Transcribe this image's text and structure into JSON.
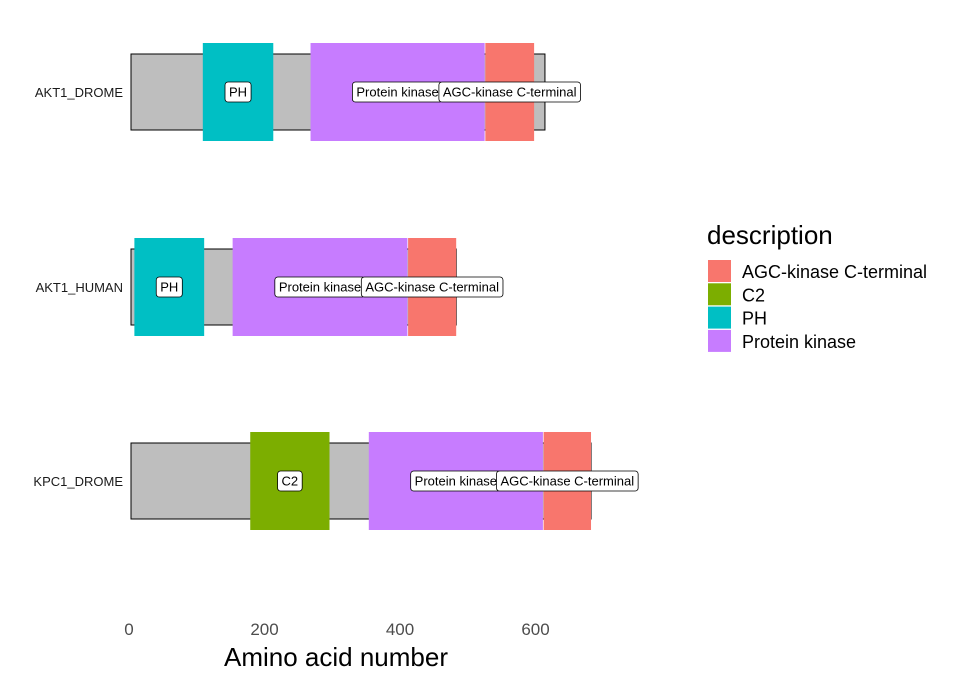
{
  "chart_data": {
    "type": "domain-architecture",
    "xlabel": "Amino acid number",
    "x_ticks": [
      0,
      200,
      400,
      600
    ],
    "xlim": [
      0,
      690
    ],
    "grid": false,
    "legend": {
      "title": "description",
      "placement": "right",
      "entries": [
        {
          "label": "AGC-kinase C-terminal",
          "color": "#F8766D"
        },
        {
          "label": "C2",
          "color": "#7CAE00"
        },
        {
          "label": "PH",
          "color": "#00BFC4"
        },
        {
          "label": "Protein kinase",
          "color": "#C77CFF"
        }
      ]
    },
    "proteins": [
      {
        "name": "AKT1_DROME",
        "length": 611,
        "domains": [
          {
            "description": "PH",
            "label": "PH",
            "start": 106,
            "end": 210
          },
          {
            "description": "Protein kinase",
            "label": "Protein kinase",
            "start": 265,
            "end": 522
          },
          {
            "description": "AGC-kinase C-terminal",
            "label": "AGC-kinase C-terminal",
            "start": 523,
            "end": 595
          }
        ]
      },
      {
        "name": "AKT1_HUMAN",
        "length": 480,
        "domains": [
          {
            "description": "PH",
            "label": "PH",
            "start": 5,
            "end": 108
          },
          {
            "description": "Protein kinase",
            "label": "Protein kinase",
            "start": 150,
            "end": 408
          },
          {
            "description": "AGC-kinase C-terminal",
            "label": "AGC-kinase C-terminal",
            "start": 409,
            "end": 480
          }
        ]
      },
      {
        "name": "KPC1_DROME",
        "length": 679,
        "domains": [
          {
            "description": "C2",
            "label": "C2",
            "start": 176,
            "end": 293
          },
          {
            "description": "Protein kinase",
            "label": "Protein kinase",
            "start": 351,
            "end": 608
          },
          {
            "description": "AGC-kinase C-terminal",
            "label": "AGC-kinase C-terminal",
            "start": 609,
            "end": 679
          }
        ]
      }
    ]
  }
}
